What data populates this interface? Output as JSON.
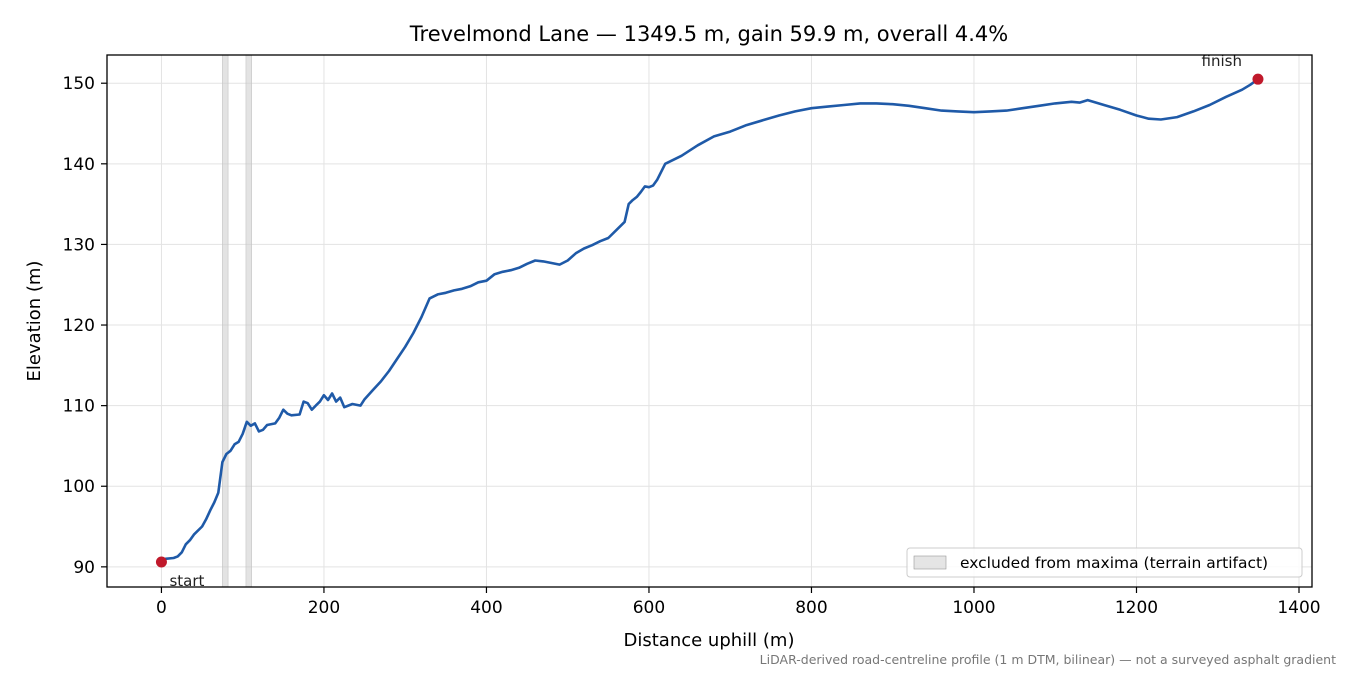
{
  "chart_data": {
    "type": "line",
    "title": "Trevelmond Lane — 1349.5 m, gain 59.9 m, overall 4.4%",
    "xlabel": "Distance uphill (m)",
    "ylabel": "Elevation (m)",
    "xlim": [
      -67,
      1416
    ],
    "ylim": [
      87.5,
      153.5
    ],
    "x_ticks": [
      0,
      200,
      400,
      600,
      800,
      1000,
      1200,
      1400
    ],
    "y_ticks": [
      90,
      100,
      110,
      120,
      130,
      140,
      150
    ],
    "grid": true,
    "line_color": "#1f5aa8",
    "marker_color": "#c0192b",
    "excluded_color": "#cccccc",
    "excluded_bands": [
      [
        75,
        82
      ],
      [
        104,
        111
      ]
    ],
    "series": [
      {
        "points": [
          [
            0,
            90.6
          ],
          [
            5,
            91.0
          ],
          [
            15,
            91.1
          ],
          [
            20,
            91.3
          ],
          [
            25,
            91.8
          ],
          [
            30,
            92.8
          ],
          [
            35,
            93.3
          ],
          [
            40,
            94.0
          ],
          [
            50,
            95.0
          ],
          [
            55,
            95.9
          ],
          [
            60,
            97.0
          ],
          [
            65,
            98.0
          ],
          [
            70,
            99.2
          ],
          [
            75,
            103.0
          ],
          [
            80,
            104.0
          ],
          [
            85,
            104.4
          ],
          [
            90,
            105.2
          ],
          [
            95,
            105.5
          ],
          [
            100,
            106.5
          ],
          [
            105,
            108.0
          ],
          [
            110,
            107.5
          ],
          [
            115,
            107.8
          ],
          [
            120,
            106.8
          ],
          [
            125,
            107.0
          ],
          [
            130,
            107.6
          ],
          [
            140,
            107.8
          ],
          [
            145,
            108.5
          ],
          [
            150,
            109.5
          ],
          [
            155,
            109.0
          ],
          [
            160,
            108.8
          ],
          [
            170,
            108.9
          ],
          [
            175,
            110.5
          ],
          [
            180,
            110.3
          ],
          [
            185,
            109.5
          ],
          [
            190,
            110.0
          ],
          [
            195,
            110.5
          ],
          [
            200,
            111.3
          ],
          [
            205,
            110.7
          ],
          [
            210,
            111.5
          ],
          [
            215,
            110.5
          ],
          [
            220,
            111.0
          ],
          [
            225,
            109.8
          ],
          [
            235,
            110.2
          ],
          [
            245,
            110.0
          ],
          [
            250,
            110.8
          ],
          [
            260,
            111.9
          ],
          [
            270,
            113.0
          ],
          [
            280,
            114.3
          ],
          [
            290,
            115.8
          ],
          [
            300,
            117.3
          ],
          [
            310,
            119.0
          ],
          [
            320,
            121.0
          ],
          [
            330,
            123.3
          ],
          [
            340,
            123.8
          ],
          [
            350,
            124.0
          ],
          [
            360,
            124.3
          ],
          [
            370,
            124.5
          ],
          [
            380,
            124.8
          ],
          [
            390,
            125.3
          ],
          [
            400,
            125.5
          ],
          [
            410,
            126.3
          ],
          [
            420,
            126.6
          ],
          [
            430,
            126.8
          ],
          [
            440,
            127.1
          ],
          [
            450,
            127.6
          ],
          [
            460,
            128.0
          ],
          [
            470,
            127.9
          ],
          [
            480,
            127.7
          ],
          [
            490,
            127.5
          ],
          [
            500,
            128.0
          ],
          [
            510,
            128.9
          ],
          [
            520,
            129.5
          ],
          [
            530,
            129.9
          ],
          [
            540,
            130.4
          ],
          [
            550,
            130.8
          ],
          [
            560,
            131.8
          ],
          [
            570,
            132.8
          ],
          [
            575,
            135.0
          ],
          [
            580,
            135.5
          ],
          [
            585,
            135.9
          ],
          [
            590,
            136.5
          ],
          [
            595,
            137.2
          ],
          [
            600,
            137.1
          ],
          [
            605,
            137.3
          ],
          [
            610,
            138.0
          ],
          [
            620,
            140.0
          ],
          [
            640,
            141.0
          ],
          [
            660,
            142.3
          ],
          [
            680,
            143.4
          ],
          [
            700,
            144.0
          ],
          [
            720,
            144.8
          ],
          [
            740,
            145.4
          ],
          [
            760,
            146.0
          ],
          [
            780,
            146.5
          ],
          [
            800,
            146.9
          ],
          [
            820,
            147.1
          ],
          [
            840,
            147.3
          ],
          [
            860,
            147.5
          ],
          [
            880,
            147.5
          ],
          [
            900,
            147.4
          ],
          [
            920,
            147.2
          ],
          [
            940,
            146.9
          ],
          [
            960,
            146.6
          ],
          [
            980,
            146.5
          ],
          [
            1000,
            146.4
          ],
          [
            1020,
            146.5
          ],
          [
            1040,
            146.6
          ],
          [
            1060,
            146.9
          ],
          [
            1080,
            147.2
          ],
          [
            1100,
            147.5
          ],
          [
            1120,
            147.7
          ],
          [
            1130,
            147.6
          ],
          [
            1140,
            147.9
          ],
          [
            1160,
            147.3
          ],
          [
            1180,
            146.7
          ],
          [
            1200,
            146.0
          ],
          [
            1215,
            145.6
          ],
          [
            1230,
            145.5
          ],
          [
            1250,
            145.8
          ],
          [
            1270,
            146.5
          ],
          [
            1290,
            147.3
          ],
          [
            1310,
            148.3
          ],
          [
            1330,
            149.2
          ],
          [
            1340,
            149.8
          ],
          [
            1349.5,
            150.5
          ]
        ]
      }
    ],
    "annotations": [
      {
        "label": "start",
        "x": 0,
        "y": 90.6
      },
      {
        "label": "finish",
        "x": 1349.5,
        "y": 150.5
      }
    ],
    "legend": {
      "position": "lower-right",
      "entries": [
        "excluded from maxima (terrain artifact)"
      ]
    }
  },
  "footer_note": "LiDAR-derived road-centreline profile (1 m DTM, bilinear) — not a surveyed asphalt gradient"
}
